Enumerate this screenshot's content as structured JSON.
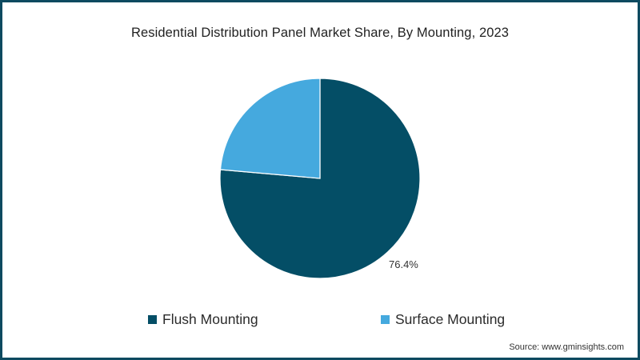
{
  "chart_data": {
    "type": "pie",
    "title": "Residential Distribution Panel Market Share, By Mounting, 2023",
    "categories": [
      "Flush Mounting",
      "Surface Mounting"
    ],
    "values": [
      76.4,
      23.6
    ],
    "colors": [
      "#044e66",
      "#45a9de"
    ],
    "data_labels": [
      {
        "category": "Flush Mounting",
        "text": "76.4%"
      }
    ],
    "start_angle": "12 o'clock",
    "direction": "clockwise",
    "legend_position": "bottom"
  },
  "title": "Residential Distribution Panel Market Share, By Mounting, 2023",
  "data_label": "76.4%",
  "legend": [
    {
      "label": "Flush Mounting",
      "color": "#044e66"
    },
    {
      "label": "Surface Mounting",
      "color": "#45a9de"
    }
  ],
  "source": "Source: www.gminsights.com",
  "frame_color": "#0d4a60"
}
